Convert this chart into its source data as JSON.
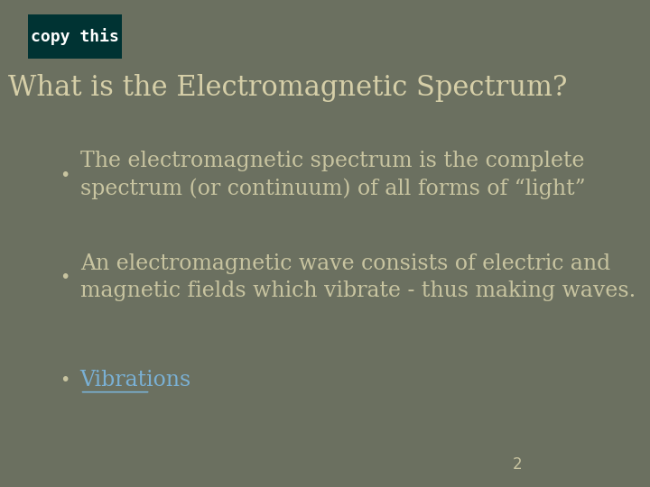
{
  "bg_color": "#6b7060",
  "slide_bg": "#6b7060",
  "title": "What is the Electromagnetic Spectrum?",
  "title_color": "#d6cfa8",
  "title_fontsize": 22,
  "copy_box_color": "#003333",
  "copy_box_text": "copy this",
  "copy_box_text_color": "#ffffff",
  "bullet_color": "#c8c4a0",
  "bullet_fontsize": 17,
  "bullets": [
    "The electromagnetic spectrum is the complete\nspectrum (or continuum) of all forms of “light”",
    "An electromagnetic wave consists of electric and\nmagnetic fields which vibrate - thus making waves.",
    "Vibrations"
  ],
  "vibrations_color": "#7ab0d4",
  "page_number": "2",
  "page_number_color": "#c8c4a0"
}
